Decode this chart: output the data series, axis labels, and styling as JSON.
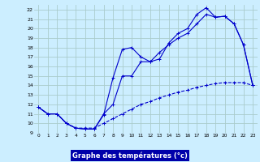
{
  "xlabel": "Graphe des températures (°c)",
  "bg_color": "#cceeff",
  "plot_bg_color": "#cceeff",
  "line_color": "#0000cc",
  "grid_color": "#aacccc",
  "xlabel_bg": "#0000aa",
  "xlabel_color": "#ffffff",
  "xlim": [
    -0.5,
    23.5
  ],
  "ylim": [
    9,
    22.5
  ],
  "yticks": [
    9,
    10,
    11,
    12,
    13,
    14,
    15,
    16,
    17,
    18,
    19,
    20,
    21,
    22
  ],
  "xticks": [
    0,
    1,
    2,
    3,
    4,
    5,
    6,
    7,
    8,
    9,
    10,
    11,
    12,
    13,
    14,
    15,
    16,
    17,
    18,
    19,
    20,
    21,
    22,
    23
  ],
  "s1_y": [
    11.7,
    11.0,
    11.0,
    10.0,
    9.5,
    9.4,
    9.4,
    11.0,
    12.0,
    15.0,
    15.0,
    16.5,
    16.5,
    16.8,
    18.5,
    19.5,
    20.0,
    21.5,
    22.2,
    21.2,
    21.3,
    20.5,
    18.3,
    14.0
  ],
  "s2_y": [
    11.7,
    11.0,
    11.0,
    10.0,
    9.5,
    9.4,
    9.4,
    10.9,
    14.8,
    17.8,
    18.0,
    17.0,
    16.5,
    17.5,
    18.3,
    19.0,
    19.5,
    20.5,
    21.5,
    21.2,
    21.3,
    20.5,
    18.3,
    14.0
  ],
  "s3_y": [
    11.7,
    11.0,
    11.0,
    10.0,
    9.5,
    9.5,
    9.5,
    10.0,
    10.5,
    11.0,
    11.5,
    12.0,
    12.3,
    12.7,
    13.0,
    13.3,
    13.5,
    13.8,
    14.0,
    14.2,
    14.3,
    14.3,
    14.3,
    14.0
  ]
}
